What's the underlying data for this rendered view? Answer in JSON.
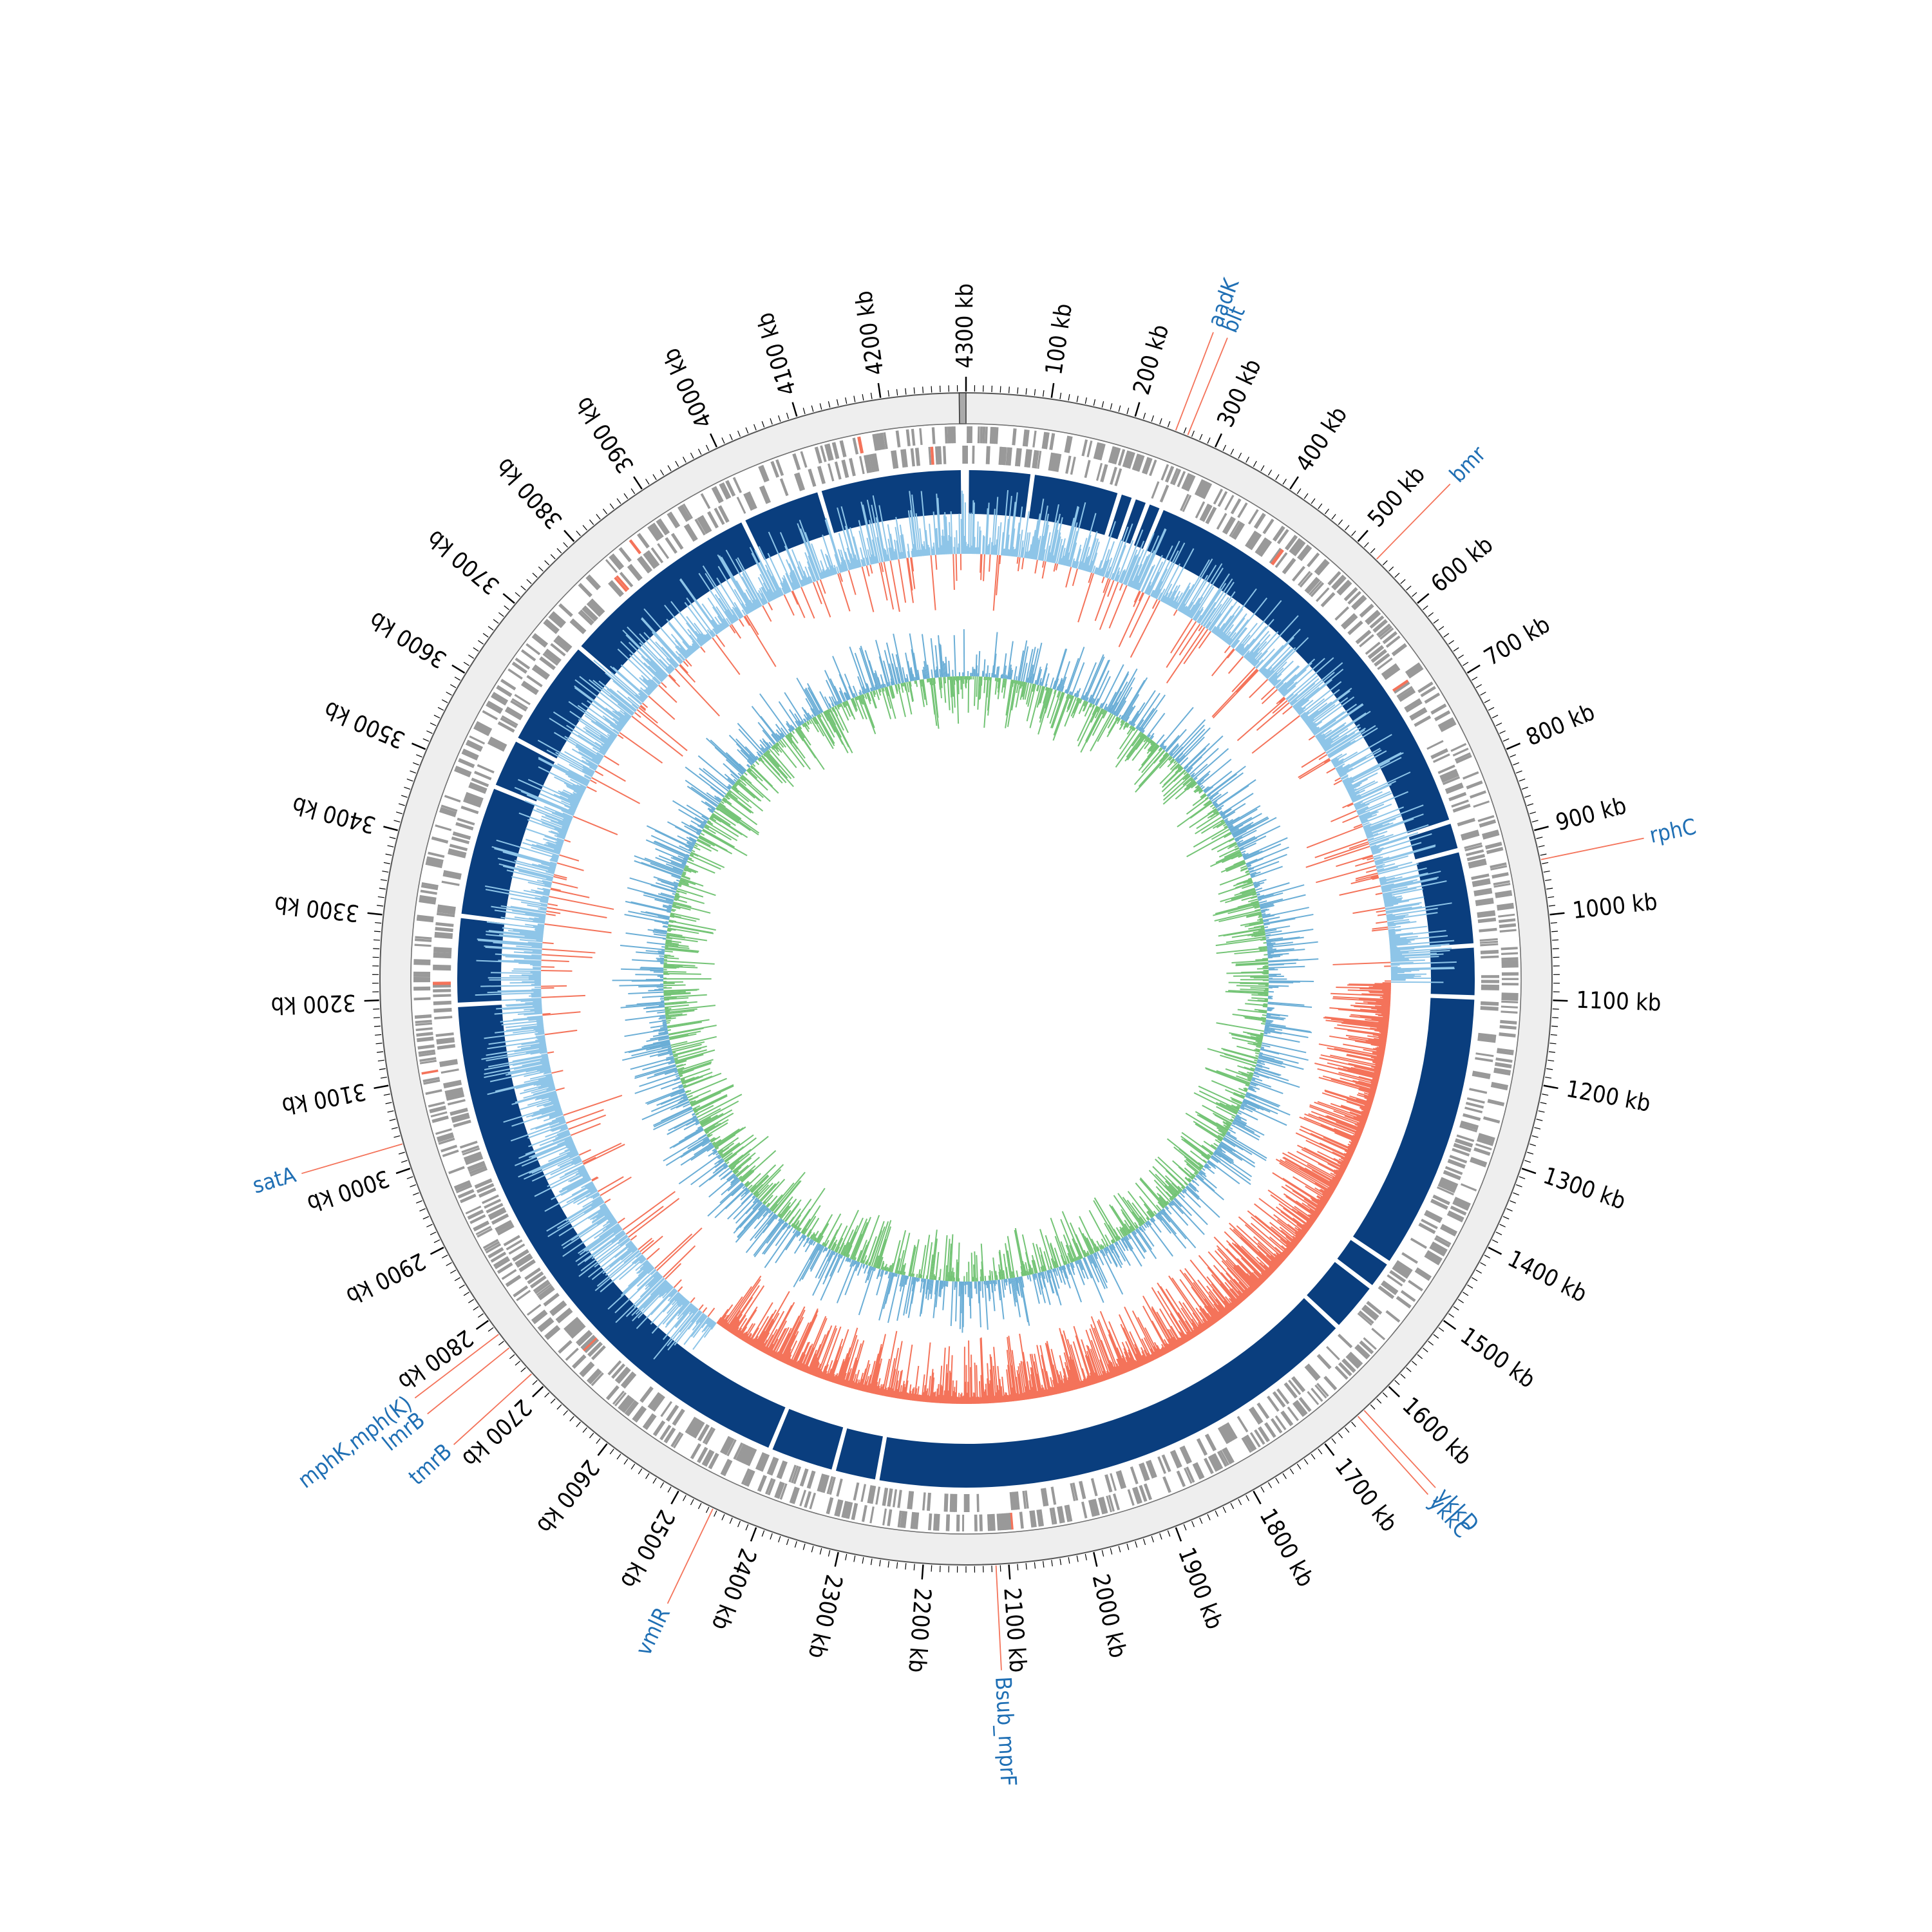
{
  "genome": {
    "total_kb": 4300,
    "tick_labels": [
      "100 kb",
      "200 kb",
      "300 kb",
      "400 kb",
      "500 kb",
      "600 kb",
      "700 kb",
      "800 kb",
      "900 kb",
      "1000 kb",
      "1100 kb",
      "1200 kb",
      "1300 kb",
      "1400 kb",
      "1500 kb",
      "1600 kb",
      "1700 kb",
      "1800 kb",
      "1900 kb",
      "2000 kb",
      "2100 kb",
      "2200 kb",
      "2300 kb",
      "2400 kb",
      "2500 kb",
      "2600 kb",
      "2700 kb",
      "2800 kb",
      "2900 kb",
      "3000 kb",
      "3100 kb",
      "3200 kb",
      "3300 kb",
      "3400 kb",
      "3500 kb",
      "3600 kb",
      "3700 kb",
      "3800 kb",
      "3900 kb",
      "4000 kb",
      "4100 kb",
      "4200 kb",
      "4300 kb"
    ]
  },
  "colors": {
    "outer_ring": "#eeeeee",
    "gene_gray": "#999999",
    "gene_highlight": "#f4735a",
    "contig_blue": "#0a3e7e",
    "gc_positive": "#8ec5e8",
    "gc_negative": "#f4735a",
    "skew_blue": "#6baed6",
    "skew_green": "#74c476",
    "label_blue": "#1f6fb4",
    "leader_red": "#f4735a"
  },
  "gene_labels": [
    {
      "name": "aadK",
      "kb": 250
    },
    {
      "name": "blt",
      "kb": 265
    },
    {
      "name": "bmr",
      "kb": 530
    },
    {
      "name": "rphC",
      "kb": 935
    },
    {
      "name": "ykkD",
      "kb": 1640
    },
    {
      "name": "ykkC",
      "kb": 1650
    },
    {
      "name": "Bsub_mprF",
      "kb": 2115
    },
    {
      "name": "vmlR",
      "kb": 2455
    },
    {
      "name": "tmrB",
      "kb": 2720
    },
    {
      "name": "lmrB",
      "kb": 2760
    },
    {
      "name": "mphK,mph(K)",
      "kb": 2780
    },
    {
      "name": "satA",
      "kb": 3030
    }
  ],
  "contig_gaps_kb": [
    0,
    90,
    210,
    230,
    250,
    270,
    860,
    900,
    1030,
    1100,
    1480,
    1520,
    1590,
    2270,
    2330,
    2420,
    3190,
    3310,
    3490,
    3560,
    3710,
    3990,
    4100
  ]
}
